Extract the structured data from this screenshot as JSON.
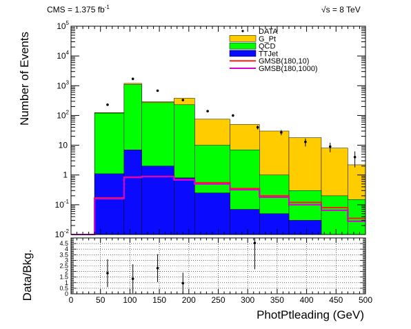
{
  "header": {
    "lumi_label": "CMS = 1.375 fb",
    "lumi_exponent": "-1",
    "energy_label": "√s = 8 TeV"
  },
  "chart_data": [
    {
      "type": "bar",
      "stacked": true,
      "log_y": true,
      "ylabel": "Number of Events",
      "xlim": [
        0,
        500
      ],
      "ylim": [
        0.01,
        100000
      ],
      "bin_edges": [
        0,
        40,
        90,
        120,
        175,
        210,
        270,
        320,
        370,
        425,
        470,
        500
      ],
      "y_ticks": [
        {
          "value": 0.01,
          "base": "10",
          "exp": "-2"
        },
        {
          "value": 0.1,
          "base": "10",
          "exp": "-1"
        },
        {
          "value": 1,
          "base": "1",
          "exp": ""
        },
        {
          "value": 10,
          "base": "10",
          "exp": ""
        },
        {
          "value": 100,
          "base": "10",
          "exp": "2"
        },
        {
          "value": 1000,
          "base": "10",
          "exp": "3"
        },
        {
          "value": 10000,
          "base": "10",
          "exp": "4"
        },
        {
          "value": 100000,
          "base": "10",
          "exp": "5"
        }
      ],
      "series": [
        {
          "name": "TTJet",
          "color": "#0a0aff",
          "values": [
            0,
            1.1,
            7,
            2,
            0.8,
            0.25,
            0.07,
            0.05,
            0.03,
            0,
            0
          ]
        },
        {
          "name": "QCD",
          "color": "#00ff00",
          "values": [
            0,
            120,
            1100,
            270,
            230,
            10,
            7,
            1,
            0.3,
            0.2,
            0.15
          ]
        },
        {
          "name": "G_Pt",
          "color": "#ffcc00",
          "values": [
            0,
            125,
            1200,
            290,
            380,
            75,
            50,
            30,
            18,
            8,
            2.2
          ]
        }
      ],
      "overlay_lines": [
        {
          "name": "GMSB(180,10)",
          "color": "#ff1a1a",
          "values": [
            0.01,
            0.17,
            0.85,
            0.9,
            0.7,
            0.55,
            0.35,
            0.2,
            0.12,
            0.08,
            0.035
          ]
        },
        {
          "name": "GMSB(180,1000)",
          "color": "#d400d4",
          "values": [
            0.01,
            0.16,
            0.82,
            0.88,
            0.68,
            0.5,
            0.32,
            0.18,
            0.1,
            0.065,
            0.028
          ]
        }
      ],
      "data_points": {
        "name": "DATA",
        "x": [
          62,
          105,
          147,
          190,
          232,
          275,
          317,
          357,
          398,
          440,
          482
        ],
        "y": [
          230,
          1700,
          680,
          330,
          140,
          100,
          40,
          27,
          13,
          9,
          4
        ],
        "yerr_rel": [
          0.07,
          0.025,
          0.04,
          0.06,
          0.09,
          0.1,
          0.16,
          0.2,
          0.3,
          0.35,
          0.55
        ]
      },
      "legend": {
        "placement": "top-right",
        "entries": [
          {
            "label": "DATA",
            "kind": "marker",
            "color": "#000000"
          },
          {
            "label": "G_Pt",
            "kind": "fill",
            "color": "#ffcc00"
          },
          {
            "label": "QCD",
            "kind": "fill",
            "color": "#00ff00"
          },
          {
            "label": "TTJet",
            "kind": "fill",
            "color": "#0a0aff"
          },
          {
            "label": "GMSB(180,10)",
            "kind": "line",
            "color": "#ff1a1a"
          },
          {
            "label": "GMSB(180,1000)",
            "kind": "line",
            "color": "#d400d4"
          }
        ]
      }
    },
    {
      "type": "scatter",
      "ylabel": "Data/Bkg.",
      "xlabel": "PhotPtleading (GeV)",
      "xlim": [
        0,
        500
      ],
      "ylim": [
        0,
        5
      ],
      "grid": true,
      "x_ticks": [
        {
          "value": 0,
          "label": "0"
        },
        {
          "value": 50,
          "label": "50"
        },
        {
          "value": 100,
          "label": "100"
        },
        {
          "value": 150,
          "label": "150"
        },
        {
          "value": 200,
          "label": "200"
        },
        {
          "value": 250,
          "label": "250"
        },
        {
          "value": 300,
          "label": "300"
        },
        {
          "value": 350,
          "label": "350"
        },
        {
          "value": 400,
          "label": "400"
        },
        {
          "value": 450,
          "label": "450"
        },
        {
          "value": 500,
          "label": "500"
        }
      ],
      "y_ticks": [
        {
          "value": 0,
          "label": "0"
        },
        {
          "value": 0.5,
          "label": "0.5"
        },
        {
          "value": 1,
          "label": "1"
        },
        {
          "value": 1.5,
          "label": "1.5"
        },
        {
          "value": 2,
          "label": "2"
        },
        {
          "value": 2.5,
          "label": "2.5"
        },
        {
          "value": 3,
          "label": "3"
        },
        {
          "value": 3.5,
          "label": "3.5"
        },
        {
          "value": 4,
          "label": "4"
        },
        {
          "value": 4.5,
          "label": "4.5"
        }
      ],
      "points": {
        "x": [
          62,
          105,
          147,
          190,
          312
        ],
        "y": [
          1.85,
          1.35,
          2.3,
          0.95,
          4.55
        ],
        "yerr_lo": [
          1.25,
          1.3,
          1.25,
          0.95,
          2.35
        ],
        "yerr_hi": [
          1.25,
          1.3,
          1.25,
          0.95,
          0.5
        ]
      }
    }
  ]
}
